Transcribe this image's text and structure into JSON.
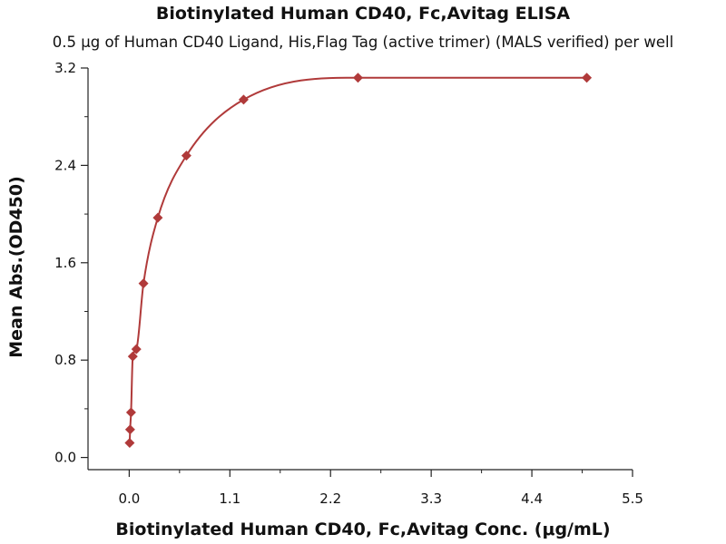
{
  "chart_data": {
    "type": "scatter",
    "title": "Biotinylated Human CD40, Fc,Avitag ELISA",
    "subtitle": "0.5 μg of Human CD40 Ligand, His,Flag Tag (active trimer) (MALS verified) per well",
    "xlabel": "Biotinylated Human CD40, Fc,Avitag Conc. (μg/mL)",
    "ylabel": "Mean Abs.(OD450)",
    "xlim": [
      -0.45,
      5.5
    ],
    "ylim": [
      -0.1,
      3.2
    ],
    "x_ticks": [
      "0.0",
      "1.1",
      "2.2",
      "3.3",
      "4.4",
      "5.5"
    ],
    "y_ticks": [
      "0.0",
      "0.8",
      "1.6",
      "2.4",
      "3.2"
    ],
    "grid": false,
    "marker_color": "#b03a3a",
    "line_color": "#b03a3a",
    "series": [
      {
        "x": [
          0.005,
          0.01,
          0.02,
          0.039,
          0.078,
          0.156,
          0.3125,
          0.625,
          1.25,
          2.5,
          5.0
        ],
        "y": [
          0.12,
          0.23,
          0.37,
          0.83,
          0.89,
          1.43,
          1.97,
          2.48,
          2.94,
          3.12,
          3.12
        ],
        "fit": "curve"
      }
    ]
  }
}
